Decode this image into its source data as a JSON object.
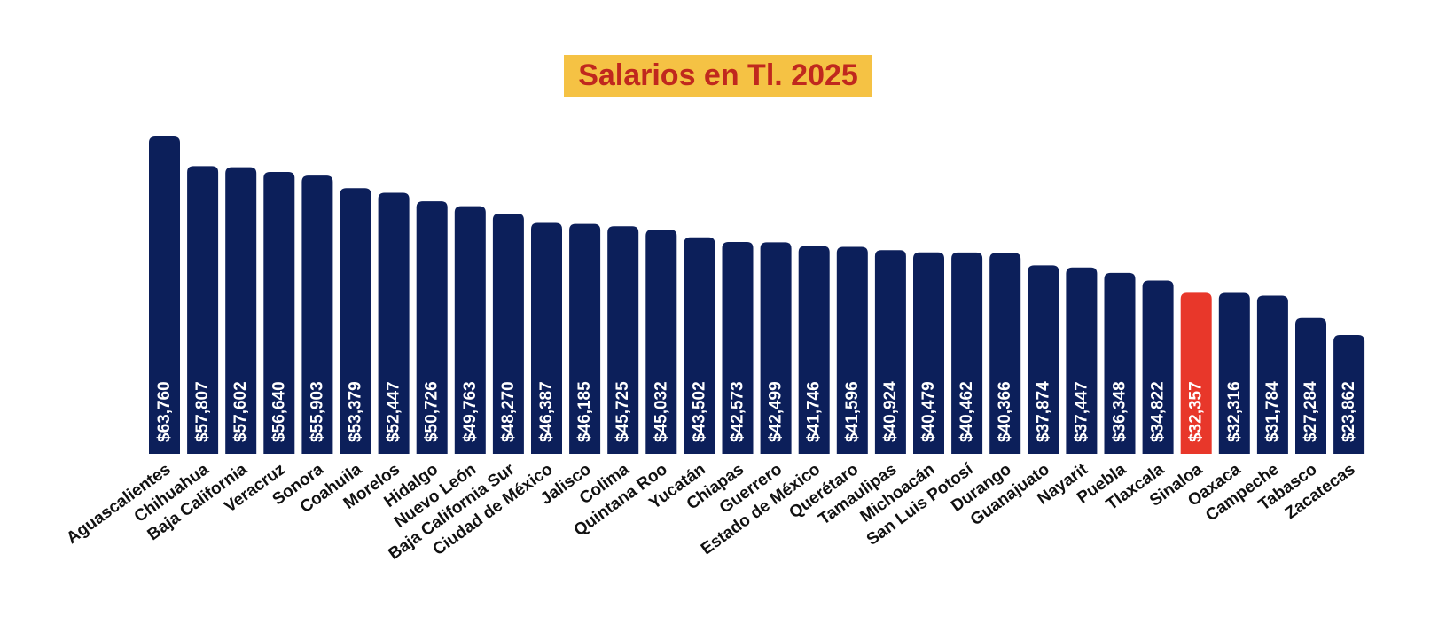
{
  "chart_data": {
    "type": "bar",
    "title": "Salarios en Tl. 2025",
    "xlabel": "",
    "ylabel": "",
    "ylim": [
      0,
      63760
    ],
    "grid": false,
    "legend": "none",
    "categories": [
      "Aguascalientes",
      "Chihuahua",
      "Baja California",
      "Veracruz",
      "Sonora",
      "Coahuila",
      "Morelos",
      "Hidalgo",
      "Nuevo León",
      "Baja California Sur",
      "Ciudad de México",
      "Jalisco",
      "Colima",
      "Quintana Roo",
      "Yucatán",
      "Chiapas",
      "Guerrero",
      "Estado de México",
      "Querétaro",
      "Tamaulipas",
      "Michoacán",
      "San Luis Potosí",
      "Durango",
      "Guanajuato",
      "Nayarit",
      "Puebla",
      "Tlaxcala",
      "Sinaloa",
      "Oaxaca",
      "Campeche",
      "Tabasco",
      "Zacatecas"
    ],
    "values": [
      63760,
      57807,
      57602,
      56640,
      55903,
      53379,
      52447,
      50726,
      49763,
      48270,
      46387,
      46185,
      45725,
      45032,
      43502,
      42573,
      42499,
      41746,
      41596,
      40924,
      40479,
      40462,
      40366,
      37874,
      37447,
      36348,
      34822,
      32357,
      32316,
      31784,
      27284,
      23862
    ],
    "data_labels": [
      "$63,760",
      "$57,807",
      "$57,602",
      "$56,640",
      "$55,903",
      "$53,379",
      "$52,447",
      "$50,726",
      "$49,763",
      "$48,270",
      "$46,387",
      "$46,185",
      "$45,725",
      "$45,032",
      "$43,502",
      "$42,573",
      "$42,499",
      "$41,746",
      "$41,596",
      "$40,924",
      "$40,479",
      "$40,462",
      "$40,366",
      "$37,874",
      "$37,447",
      "$36,348",
      "$34,822",
      "$32,357",
      "$32,316",
      "$31,784",
      "$27,284",
      "$23,862"
    ],
    "highlight": "Sinaloa",
    "colors": {
      "bar": "#0c1f5a",
      "highlight": "#e8372a",
      "title_bg": "#f5c244",
      "title_text": "#c0281e"
    }
  }
}
